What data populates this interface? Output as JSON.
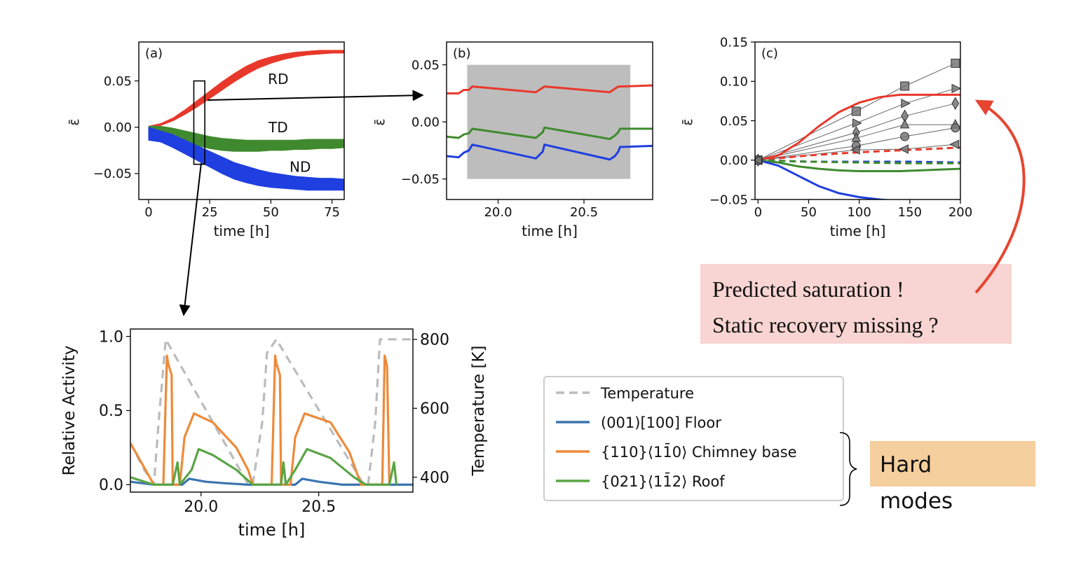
{
  "colors": {
    "rd": "#e8382b",
    "td": "#3f8a2e",
    "nd": "#1f3fe0",
    "floor": "#3b75b0",
    "chimney": "#ee8a3a",
    "roof": "#5aa545",
    "temp": "#bbbbbb",
    "note_bg": "#f8d4d2",
    "hard_bg": "#f6cf9e",
    "arrow_red": "#e64530",
    "shade": "#bdbdbd"
  },
  "chart_data": [
    {
      "id": "a",
      "type": "area",
      "panel_label": "(a)",
      "xlabel": "time [h]",
      "ylabel": "ε̄",
      "xlim": [
        -4,
        80
      ],
      "ylim": [
        -0.078,
        0.092
      ],
      "xticks": [
        0,
        25,
        50,
        75
      ],
      "xtick_labels": [
        "0",
        "25",
        "50",
        "75"
      ],
      "yticks": [
        -0.05,
        0.0,
        0.05
      ],
      "ytick_labels": [
        "−0.05",
        "0.00",
        "0.05"
      ],
      "series": [
        {
          "name": "RD",
          "color_key": "rd",
          "x": [
            0,
            5,
            10,
            15,
            20,
            25,
            30,
            35,
            40,
            45,
            50,
            55,
            60,
            65,
            70,
            75,
            80
          ],
          "lower": [
            -0.001,
            0.002,
            0.007,
            0.014,
            0.022,
            0.031,
            0.04,
            0.049,
            0.057,
            0.064,
            0.069,
            0.073,
            0.076,
            0.078,
            0.079,
            0.08,
            0.08
          ],
          "upper": [
            0.001,
            0.004,
            0.01,
            0.019,
            0.029,
            0.039,
            0.049,
            0.058,
            0.066,
            0.072,
            0.076,
            0.079,
            0.081,
            0.082,
            0.083,
            0.083,
            0.083
          ]
        },
        {
          "name": "TD",
          "color_key": "td",
          "x": [
            0,
            5,
            10,
            15,
            20,
            25,
            30,
            35,
            40,
            45,
            50,
            55,
            60,
            65,
            70,
            75,
            80
          ],
          "lower": [
            -0.003,
            -0.005,
            -0.01,
            -0.015,
            -0.02,
            -0.023,
            -0.025,
            -0.026,
            -0.026,
            -0.026,
            -0.025,
            -0.025,
            -0.024,
            -0.024,
            -0.023,
            -0.023,
            -0.022
          ],
          "upper": [
            0.001,
            0.001,
            -0.001,
            -0.004,
            -0.007,
            -0.01,
            -0.012,
            -0.013,
            -0.014,
            -0.014,
            -0.014,
            -0.014,
            -0.014,
            -0.013,
            -0.013,
            -0.013,
            -0.013
          ]
        },
        {
          "name": "ND",
          "color_key": "nd",
          "x": [
            0,
            5,
            10,
            15,
            20,
            25,
            30,
            35,
            40,
            45,
            50,
            55,
            60,
            65,
            70,
            75,
            80
          ],
          "lower": [
            -0.014,
            -0.016,
            -0.022,
            -0.029,
            -0.036,
            -0.043,
            -0.05,
            -0.056,
            -0.06,
            -0.063,
            -0.065,
            -0.066,
            -0.067,
            -0.068,
            -0.068,
            -0.068,
            -0.068
          ],
          "upper": [
            0.0,
            -0.004,
            -0.008,
            -0.014,
            -0.02,
            -0.026,
            -0.032,
            -0.038,
            -0.042,
            -0.046,
            -0.049,
            -0.051,
            -0.053,
            -0.054,
            -0.055,
            -0.055,
            -0.056
          ]
        }
      ],
      "annotations": [
        {
          "text": "RD",
          "x": 53,
          "y": 0.052
        },
        {
          "text": "TD",
          "x": 53,
          "y": 0.0
        },
        {
          "text": "ND",
          "x": 62,
          "y": -0.043
        }
      ],
      "highlight_box": {
        "x0": 18.5,
        "x1": 23,
        "y0": -0.04,
        "y1": 0.05
      }
    },
    {
      "id": "b",
      "type": "line",
      "panel_label": "(b)",
      "xlabel": "time [h]",
      "ylabel": "ε̄",
      "xlim": [
        19.7,
        20.9
      ],
      "ylim": [
        -0.068,
        0.07
      ],
      "xticks": [
        20.0,
        20.5
      ],
      "xtick_labels": [
        "20.0",
        "20.5"
      ],
      "yticks": [
        -0.05,
        0.0,
        0.05
      ],
      "ytick_labels": [
        "−0.05",
        "0.00",
        "0.05"
      ],
      "shaded_region": {
        "x0": 19.82,
        "x1": 20.77,
        "y0": -0.05,
        "y1": 0.05
      },
      "series": [
        {
          "name": "RD",
          "color_key": "rd",
          "x": [
            19.7,
            19.77,
            19.8,
            19.83,
            19.85,
            20.22,
            20.26,
            20.27,
            20.65,
            20.68,
            20.7,
            20.71,
            20.9
          ],
          "y": [
            0.025,
            0.025,
            0.028,
            0.028,
            0.031,
            0.026,
            0.03,
            0.031,
            0.026,
            0.029,
            0.031,
            0.031,
            0.032
          ]
        },
        {
          "name": "TD",
          "color_key": "td",
          "x": [
            19.7,
            19.77,
            19.8,
            19.83,
            19.85,
            20.22,
            20.26,
            20.27,
            20.65,
            20.68,
            20.7,
            20.71,
            20.9
          ],
          "y": [
            -0.013,
            -0.014,
            -0.011,
            -0.01,
            -0.006,
            -0.014,
            -0.009,
            -0.005,
            -0.015,
            -0.012,
            -0.009,
            -0.006,
            -0.006
          ]
        },
        {
          "name": "ND",
          "color_key": "nd",
          "x": [
            19.7,
            19.77,
            19.8,
            19.83,
            19.85,
            20.22,
            20.26,
            20.27,
            20.65,
            20.68,
            20.7,
            20.71,
            20.9
          ],
          "y": [
            -0.03,
            -0.031,
            -0.027,
            -0.025,
            -0.02,
            -0.032,
            -0.026,
            -0.02,
            -0.033,
            -0.03,
            -0.026,
            -0.022,
            -0.021
          ]
        }
      ]
    },
    {
      "id": "c",
      "type": "line",
      "panel_label": "(c)",
      "xlabel": "time [h]",
      "ylabel": "ε̄",
      "xlim": [
        -3,
        200
      ],
      "ylim": [
        -0.05,
        0.15
      ],
      "xticks": [
        0,
        50,
        100,
        150,
        200
      ],
      "xtick_labels": [
        "0",
        "50",
        "100",
        "150",
        "200"
      ],
      "yticks": [
        -0.05,
        0.0,
        0.05,
        0.1,
        0.15
      ],
      "ytick_labels": [
        "−0.05",
        "0.00",
        "0.05",
        "0.10",
        "0.15"
      ],
      "series": [
        {
          "name": "RD simulation",
          "color_key": "rd",
          "style": "solid",
          "x": [
            0,
            20,
            40,
            60,
            80,
            100,
            120,
            140,
            160,
            180,
            200
          ],
          "y": [
            0.0,
            0.006,
            0.022,
            0.043,
            0.061,
            0.073,
            0.08,
            0.083,
            0.083,
            0.083,
            0.083
          ]
        },
        {
          "name": "TD simulation",
          "color_key": "td",
          "style": "solid",
          "x": [
            0,
            20,
            40,
            60,
            80,
            100,
            120,
            140,
            160,
            180,
            200
          ],
          "y": [
            0.0,
            -0.003,
            -0.008,
            -0.011,
            -0.013,
            -0.014,
            -0.014,
            -0.014,
            -0.013,
            -0.012,
            -0.011
          ]
        },
        {
          "name": "ND simulation",
          "color_key": "nd",
          "style": "solid",
          "x": [
            0,
            20,
            40,
            60,
            80,
            100,
            120,
            130
          ],
          "y": [
            0.0,
            -0.007,
            -0.02,
            -0.033,
            -0.042,
            -0.047,
            -0.05,
            -0.051
          ]
        },
        {
          "name": "RD dashed",
          "color_key": "rd",
          "style": "dashed",
          "x": [
            0,
            50,
            100,
            150,
            200
          ],
          "y": [
            0.0,
            0.006,
            0.01,
            0.013,
            0.016
          ]
        },
        {
          "name": "ND dashed",
          "color_key": "nd",
          "style": "dashed",
          "x": [
            0,
            50,
            100,
            150,
            200
          ],
          "y": [
            0.0,
            -0.002,
            -0.002,
            -0.002,
            -0.003
          ]
        },
        {
          "name": "TD dashed",
          "color_key": "td",
          "style": "dashed",
          "x": [
            0,
            50,
            100,
            150,
            200
          ],
          "y": [
            0.0,
            -0.002,
            -0.003,
            -0.004,
            -0.004
          ]
        }
      ],
      "experiments": [
        {
          "marker": "square",
          "x": [
            0,
            97,
            145,
            195
          ],
          "y": [
            0.0,
            0.062,
            0.094,
            0.123
          ]
        },
        {
          "marker": "tri-right",
          "x": [
            0,
            97,
            145,
            195
          ],
          "y": [
            0.0,
            0.047,
            0.072,
            0.091
          ]
        },
        {
          "marker": "diamond",
          "x": [
            0,
            97,
            145,
            195
          ],
          "y": [
            0.0,
            0.035,
            0.056,
            0.072
          ]
        },
        {
          "marker": "triangle",
          "x": [
            0,
            97,
            145,
            195
          ],
          "y": [
            0.0,
            0.028,
            0.045,
            0.045
          ]
        },
        {
          "marker": "circle",
          "x": [
            0,
            97,
            145,
            195
          ],
          "y": [
            0.0,
            0.018,
            0.03,
            0.041
          ]
        },
        {
          "marker": "tri-left",
          "x": [
            0,
            97,
            145,
            195
          ],
          "y": [
            0.0,
            0.013,
            0.014,
            0.02
          ]
        }
      ]
    },
    {
      "id": "d",
      "type": "line",
      "panel_label": "",
      "xlabel": "time [h]",
      "ylabel": "Relative Activity",
      "y2label": "Temperature [K]",
      "xlim": [
        19.7,
        20.9
      ],
      "ylim": [
        -0.05,
        1.05
      ],
      "y2lim": [
        357,
        830
      ],
      "xticks": [
        20.0,
        20.5
      ],
      "xtick_labels": [
        "20.0",
        "20.5"
      ],
      "yticks": [
        0.0,
        0.5,
        1.0
      ],
      "ytick_labels": [
        "0.0",
        "0.5",
        "1.0"
      ],
      "y2ticks": [
        400,
        600,
        800
      ],
      "y2tick_labels": [
        "400",
        "600",
        "800"
      ],
      "series": [
        {
          "name": "Temperature",
          "color_key": "temp",
          "style": "dashed",
          "axis": "y2",
          "x": [
            19.7,
            19.76,
            19.8,
            19.82,
            19.85,
            20.2,
            20.22,
            20.26,
            20.28,
            20.32,
            20.69,
            20.71,
            20.74,
            20.76,
            20.9
          ],
          "y": [
            500,
            420,
            380,
            560,
            800,
            380,
            380,
            560,
            760,
            800,
            380,
            380,
            560,
            800,
            800
          ]
        },
        {
          "name": "(001)[100] Floor",
          "color_key": "floor",
          "style": "solid",
          "axis": "y",
          "x": [
            19.7,
            19.8,
            19.92,
            19.95,
            20.02,
            20.1,
            20.2,
            20.3,
            20.4,
            20.43,
            20.5,
            20.6,
            20.9
          ],
          "y": [
            0.02,
            0.0,
            0.0,
            0.04,
            0.02,
            0.01,
            0.0,
            0.0,
            0.0,
            0.04,
            0.02,
            0.0,
            0.0
          ]
        },
        {
          "name": "{110}⟨11̄0⟩ Chimney base",
          "color_key": "chimney",
          "style": "solid",
          "axis": "y",
          "x": [
            19.7,
            19.8,
            19.84,
            19.855,
            19.86,
            19.875,
            19.88,
            19.91,
            19.93,
            19.97,
            20.05,
            20.15,
            20.2,
            20.22,
            20.28,
            20.3,
            20.315,
            20.32,
            20.335,
            20.34,
            20.38,
            20.4,
            20.44,
            20.55,
            20.63,
            20.68,
            20.77,
            20.78,
            20.79,
            20.8
          ],
          "y": [
            0.28,
            0.0,
            0.0,
            0.87,
            0.82,
            0.74,
            0.0,
            0.0,
            0.32,
            0.48,
            0.42,
            0.25,
            0.1,
            0.0,
            0.0,
            0.0,
            0.87,
            0.82,
            0.74,
            0.0,
            0.0,
            0.32,
            0.48,
            0.42,
            0.22,
            0.0,
            0.0,
            0.87,
            0.8,
            0.0
          ]
        },
        {
          "name": "{021}⟨11̄2⟩ Roof",
          "color_key": "roof",
          "style": "solid",
          "axis": "y",
          "x": [
            19.7,
            19.8,
            19.88,
            19.9,
            19.91,
            19.96,
            19.99,
            20.05,
            20.15,
            20.22,
            20.34,
            20.35,
            20.36,
            20.4,
            20.45,
            20.55,
            20.65,
            20.7,
            20.8,
            20.82,
            20.83
          ],
          "y": [
            0.05,
            0.0,
            0.0,
            0.15,
            0.0,
            0.1,
            0.24,
            0.2,
            0.1,
            0.0,
            0.0,
            0.15,
            0.0,
            0.1,
            0.24,
            0.18,
            0.05,
            0.0,
            0.0,
            0.15,
            0.0
          ]
        }
      ]
    }
  ],
  "legend": {
    "entries": [
      {
        "label": "Temperature",
        "color_key": "temp",
        "style": "dashed"
      },
      {
        "label": "(001)[100] Floor",
        "color_key": "floor",
        "style": "solid"
      },
      {
        "label": "{110}⟨11̄0⟩ Chimney base",
        "color_key": "chimney",
        "style": "solid"
      },
      {
        "label": "{021}⟨11̄2⟩ Roof",
        "color_key": "roof",
        "style": "solid"
      }
    ]
  },
  "annotations": {
    "note_line1": "Predicted saturation !",
    "note_line2": "Static recovery missing ?",
    "hard_line1": "Hard",
    "hard_line2": "modes"
  }
}
